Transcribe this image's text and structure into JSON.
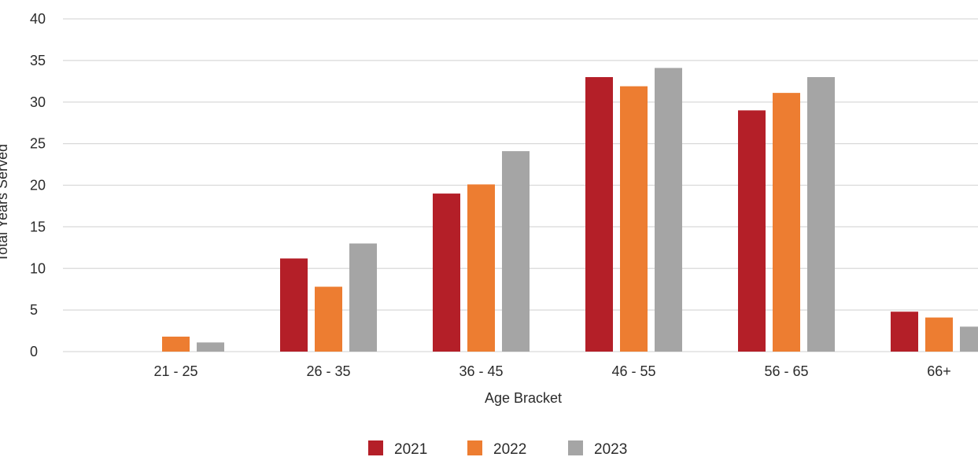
{
  "chart_data": {
    "type": "bar",
    "categories": [
      "21 - 25",
      "26 - 35",
      "36 - 45",
      "46 - 55",
      "56 - 65",
      "66+"
    ],
    "series": [
      {
        "name": "2021",
        "color": "#b41f28",
        "values": [
          0,
          11.2,
          19,
          33,
          29,
          4.8
        ]
      },
      {
        "name": "2022",
        "color": "#ed7d31",
        "values": [
          1.8,
          7.8,
          20.1,
          31.9,
          31.1,
          4.1
        ]
      },
      {
        "name": "2023",
        "color": "#a5a5a5",
        "values": [
          1.1,
          13,
          24.1,
          34.1,
          33,
          3
        ]
      }
    ],
    "title": "",
    "xlabel": "Age Bracket",
    "ylabel": "Total Years Served",
    "ylim": [
      0,
      40
    ],
    "yticks": [
      0,
      5,
      10,
      15,
      20,
      25,
      30,
      35,
      40
    ],
    "grid": true,
    "legend_position": "bottom"
  }
}
